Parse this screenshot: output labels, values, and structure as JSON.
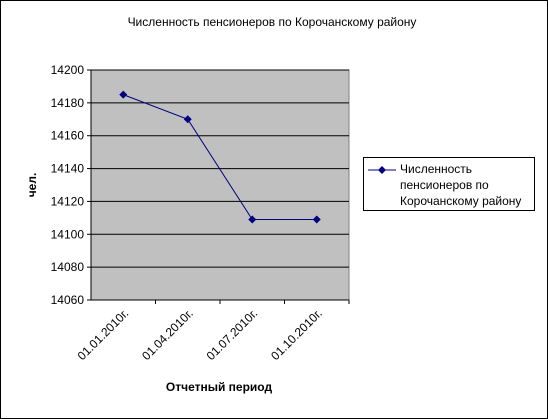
{
  "chart_data": {
    "type": "line",
    "title": "Численность пенсионеров по Корочанскому району",
    "x_label": "Отчетный период",
    "y_label": "чел.",
    "categories": [
      "01.01.2010г.",
      "01.04.2010г.",
      "01.07.2010г.",
      "01.10.2010г."
    ],
    "series": [
      {
        "name": "Численность пенсионеров по Корочанскому району",
        "color": "#000080",
        "values": [
          14185,
          14170,
          14109,
          14109
        ]
      }
    ],
    "ylim": [
      14060,
      14200
    ],
    "yticks": [
      14060,
      14080,
      14100,
      14120,
      14140,
      14160,
      14180,
      14200
    ],
    "grid": true,
    "legend": "right"
  }
}
